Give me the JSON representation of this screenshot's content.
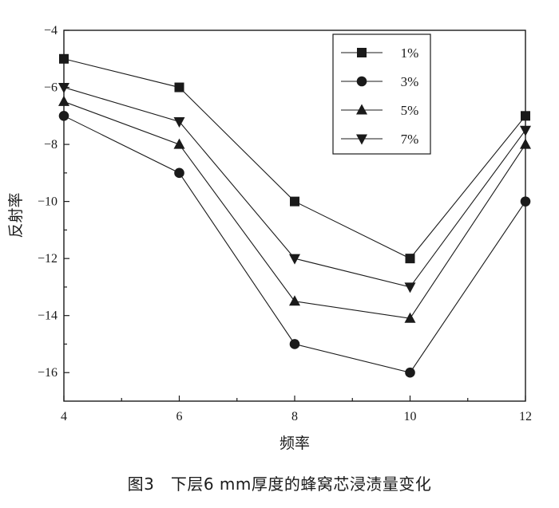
{
  "chart_data": {
    "type": "line",
    "xlabel": "频率",
    "ylabel": "反射率",
    "xlim": [
      4,
      12
    ],
    "ylim": [
      -17,
      -4
    ],
    "xticks": [
      4,
      6,
      8,
      10,
      12
    ],
    "yticks": [
      -4,
      -6,
      -8,
      -10,
      -12,
      -14,
      -16
    ],
    "x": [
      4,
      6,
      8,
      10,
      12
    ],
    "grid": false,
    "legend_position": "top-right",
    "series": [
      {
        "name": "1%",
        "marker": "square",
        "values": [
          -5,
          -6,
          -10,
          -12,
          -7
        ]
      },
      {
        "name": "3%",
        "marker": "circle",
        "values": [
          -7,
          -9,
          -15,
          -16,
          -10
        ]
      },
      {
        "name": "5%",
        "marker": "triangle-up",
        "values": [
          -6.5,
          -8,
          -13.5,
          -14.1,
          -8
        ]
      },
      {
        "name": "7%",
        "marker": "triangle-down",
        "values": [
          -6,
          -7.2,
          -12,
          -13,
          -7.5
        ]
      }
    ],
    "color": "#1a1a1a"
  },
  "caption": "图3　下层6 mm厚度的蜂窝芯浸渍量变化"
}
